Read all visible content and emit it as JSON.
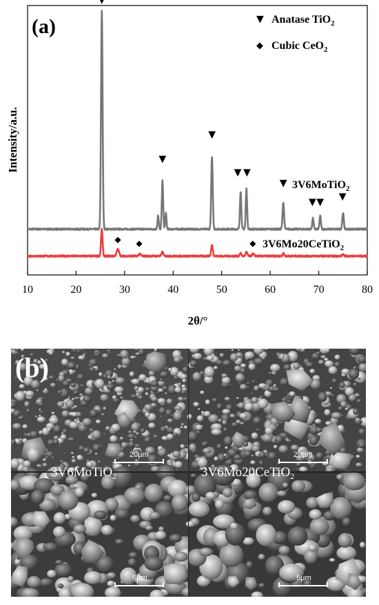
{
  "panel_a": {
    "label": "(a)",
    "xlabel": "2θ/°",
    "ylabel": "Intensity/a.u.",
    "legend": [
      {
        "marker": "▼",
        "text": "Anatase TiO",
        "sub": "2"
      },
      {
        "marker": "◆",
        "text": "Cubic CeO",
        "sub": "2"
      }
    ]
  },
  "chart_data": {
    "type": "line",
    "xlabel": "2θ/°",
    "ylabel": "Intensity/a.u.",
    "xlim": [
      10,
      80
    ],
    "xticks": [
      10,
      20,
      30,
      40,
      50,
      60,
      70,
      80
    ],
    "y_axis_ticks_labels": false,
    "series": [
      {
        "name": "3V6MoTiO2",
        "label_text": "3V6MoTiO",
        "label_sub": "2",
        "color": "#777777",
        "baseline": 0.17,
        "peaks": [
          {
            "x": 25.3,
            "h": 0.81,
            "w": 0.23
          },
          {
            "x": 36.9,
            "h": 0.05,
            "w": 0.18
          },
          {
            "x": 37.8,
            "h": 0.18,
            "w": 0.2
          },
          {
            "x": 38.5,
            "h": 0.06,
            "w": 0.18
          },
          {
            "x": 48.0,
            "h": 0.27,
            "w": 0.22
          },
          {
            "x": 53.9,
            "h": 0.14,
            "w": 0.2
          },
          {
            "x": 55.1,
            "h": 0.15,
            "w": 0.2
          },
          {
            "x": 62.7,
            "h": 0.1,
            "w": 0.22
          },
          {
            "x": 68.8,
            "h": 0.04,
            "w": 0.2
          },
          {
            "x": 70.3,
            "h": 0.05,
            "w": 0.2
          },
          {
            "x": 75.0,
            "h": 0.06,
            "w": 0.22
          }
        ],
        "markers": [
          {
            "symbol": "▼",
            "x": 25.3,
            "y": 1.01
          },
          {
            "symbol": "▼",
            "x": 37.8,
            "y": 0.42
          },
          {
            "symbol": "▼",
            "x": 48.0,
            "y": 0.51
          },
          {
            "symbol": "▼",
            "x": 53.3,
            "y": 0.37
          },
          {
            "symbol": "▼",
            "x": 55.2,
            "y": 0.37
          },
          {
            "symbol": "▼",
            "x": 62.7,
            "y": 0.33
          },
          {
            "symbol": "▼",
            "x": 68.7,
            "y": 0.26
          },
          {
            "symbol": "▼",
            "x": 70.3,
            "y": 0.26
          },
          {
            "symbol": "▼",
            "x": 74.9,
            "y": 0.28
          }
        ]
      },
      {
        "name": "3V6Mo20CeTiO2",
        "label_text": "3V6Mo20CeTiO",
        "label_sub": "2",
        "color": "#e84040",
        "baseline": 0.07,
        "peaks": [
          {
            "x": 25.3,
            "h": 0.1,
            "w": 0.22
          },
          {
            "x": 28.6,
            "h": 0.025,
            "w": 0.35
          },
          {
            "x": 33.1,
            "h": 0.008,
            "w": 0.3
          },
          {
            "x": 37.8,
            "h": 0.015,
            "w": 0.25
          },
          {
            "x": 48.0,
            "h": 0.04,
            "w": 0.25
          },
          {
            "x": 53.9,
            "h": 0.01,
            "w": 0.25
          },
          {
            "x": 55.1,
            "h": 0.015,
            "w": 0.25
          },
          {
            "x": 56.5,
            "h": 0.008,
            "w": 0.3
          },
          {
            "x": 62.7,
            "h": 0.01,
            "w": 0.25
          },
          {
            "x": 75.0,
            "h": 0.006,
            "w": 0.25
          }
        ],
        "markers": [
          {
            "symbol": "◆",
            "x": 28.6,
            "y": 0.122
          },
          {
            "symbol": "◆",
            "x": 33.0,
            "y": 0.108
          },
          {
            "symbol": "◆",
            "x": 56.4,
            "y": 0.108
          }
        ]
      }
    ]
  },
  "panel_b": {
    "label": "(b)",
    "images": [
      {
        "sample_text": "3V6MoTiO",
        "sample_sub": "2",
        "scale_bar": "20µm"
      },
      {
        "sample_text": "3V6Mo20CeTiO",
        "sample_sub": "2",
        "scale_bar": "20µm"
      },
      {
        "sample_text": "",
        "sample_sub": "",
        "scale_bar": "5µm"
      },
      {
        "sample_text": "",
        "sample_sub": "",
        "scale_bar": "5µm"
      }
    ]
  }
}
